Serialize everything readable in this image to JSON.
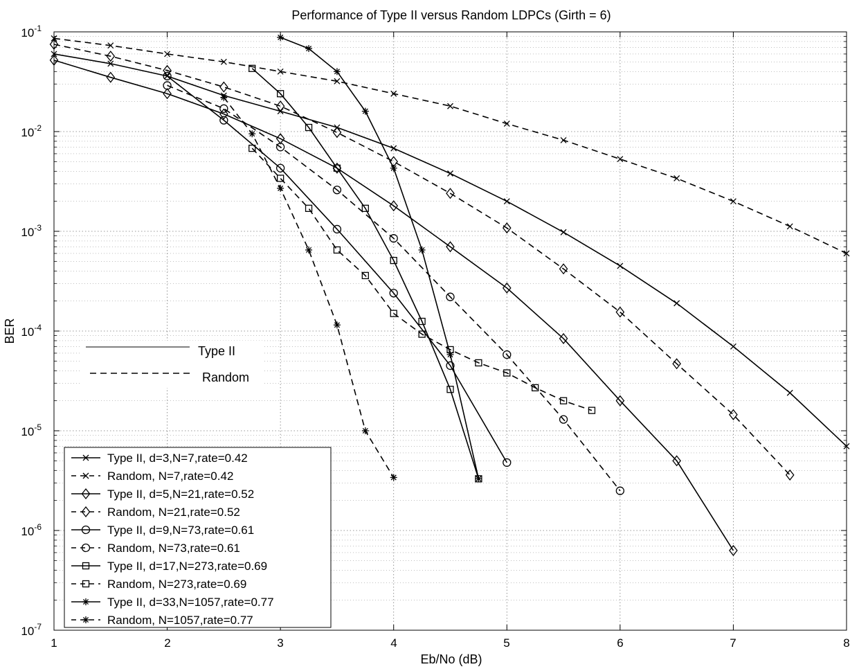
{
  "chart_data": {
    "type": "line",
    "title": "Performance of Type II versus Random LDPCs (Girth = 6)",
    "xlabel": "Eb/No (dB)",
    "ylabel": "BER",
    "xlim": [
      1,
      8
    ],
    "ylim": [
      1e-07,
      0.1
    ],
    "yscale": "log",
    "xticks": [
      1,
      2,
      3,
      4,
      5,
      6,
      7,
      8
    ],
    "yticks": [
      {
        "base": "10",
        "exp": "-1"
      },
      {
        "base": "10",
        "exp": "-2"
      },
      {
        "base": "10",
        "exp": "-3"
      },
      {
        "base": "10",
        "exp": "-4"
      },
      {
        "base": "10",
        "exp": "-5"
      },
      {
        "base": "10",
        "exp": "-6"
      },
      {
        "base": "10",
        "exp": "-7"
      }
    ],
    "grid": true,
    "legend_position": "bottom-left",
    "annotation": {
      "solid_label": "Type II",
      "dashed_label": "Random"
    },
    "series": [
      {
        "name": "Type II, d=3,N=7,rate=0.42",
        "marker": "x",
        "dash": false,
        "x": [
          1,
          1.5,
          2,
          2.5,
          3,
          3.5,
          4,
          4.5,
          5,
          5.5,
          6,
          6.5,
          7,
          7.5,
          8
        ],
        "y": [
          0.06,
          0.048,
          0.036,
          0.023,
          0.016,
          0.011,
          0.0068,
          0.0038,
          0.002,
          0.00098,
          0.00045,
          0.00019,
          7e-05,
          2.4e-05,
          7e-06
        ]
      },
      {
        "name": "Random, N=7,rate=0.42",
        "marker": "x",
        "dash": true,
        "x": [
          1,
          1.5,
          2,
          2.5,
          3,
          3.5,
          4,
          4.5,
          5,
          5.5,
          6,
          6.5,
          7,
          7.5,
          8
        ],
        "y": [
          0.086,
          0.073,
          0.06,
          0.05,
          0.04,
          0.032,
          0.024,
          0.018,
          0.012,
          0.0082,
          0.0053,
          0.0034,
          0.002,
          0.00112,
          0.0006
        ]
      },
      {
        "name": "Type II, d=5,N=21,rate=0.52",
        "marker": "diamond",
        "dash": false,
        "x": [
          1,
          1.5,
          2,
          2.5,
          3,
          3.5,
          4,
          4.5,
          5,
          5.5,
          6,
          6.5,
          7
        ],
        "y": [
          0.052,
          0.035,
          0.024,
          0.015,
          0.0085,
          0.0043,
          0.0018,
          0.0007,
          0.00027,
          8.4e-05,
          2e-05,
          5e-06,
          6.3e-07
        ]
      },
      {
        "name": "Random, N=21,rate=0.52",
        "marker": "diamond",
        "dash": true,
        "x": [
          1,
          1.5,
          2,
          2.5,
          3,
          3.5,
          4,
          4.5,
          5,
          5.5,
          6,
          6.5,
          7,
          7.5
        ],
        "y": [
          0.075,
          0.057,
          0.041,
          0.028,
          0.018,
          0.0098,
          0.005,
          0.0024,
          0.00108,
          0.00042,
          0.000155,
          4.7e-05,
          1.45e-05,
          3.6e-06
        ]
      },
      {
        "name": "Type II, d=9,N=73,rate=0.61",
        "marker": "circle",
        "dash": false,
        "x": [
          2,
          2.5,
          3,
          3.5,
          4,
          4.5,
          5
        ],
        "y": [
          0.036,
          0.013,
          0.0043,
          0.00105,
          0.00024,
          4.5e-05,
          4.8e-06
        ]
      },
      {
        "name": "Random, N=73,rate=0.61",
        "marker": "circle",
        "dash": true,
        "x": [
          2,
          2.5,
          3,
          3.5,
          4,
          4.5,
          5,
          5.5,
          6
        ],
        "y": [
          0.029,
          0.017,
          0.007,
          0.0026,
          0.00085,
          0.00022,
          5.8e-05,
          1.3e-05,
          2.5e-06
        ]
      },
      {
        "name": "Type II, d=17,N=273,rate=0.69",
        "marker": "square",
        "dash": false,
        "x": [
          2.75,
          3,
          3.25,
          3.5,
          3.75,
          4,
          4.25,
          4.5,
          4.75
        ],
        "y": [
          0.043,
          0.024,
          0.011,
          0.0043,
          0.0017,
          0.00051,
          0.000125,
          2.6e-05,
          3.3e-06
        ]
      },
      {
        "name": "Random, N=273,rate=0.69",
        "marker": "square",
        "dash": true,
        "x": [
          2.75,
          3,
          3.25,
          3.5,
          3.75,
          4,
          4.25,
          4.5,
          4.75,
          5,
          5.25,
          5.5,
          5.75
        ],
        "y": [
          0.0068,
          0.0034,
          0.0017,
          0.00065,
          0.00036,
          0.00015,
          9.3e-05,
          6.5e-05,
          4.8e-05,
          3.8e-05,
          2.7e-05,
          2e-05,
          1.6e-05
        ]
      },
      {
        "name": "Type II, d=33,N=1057,rate=0.77",
        "marker": "star",
        "dash": false,
        "x": [
          3,
          3.25,
          3.5,
          3.75,
          4,
          4.25,
          4.5,
          4.75
        ],
        "y": [
          0.088,
          0.068,
          0.04,
          0.016,
          0.0043,
          0.00065,
          5.8e-05,
          3.3e-06
        ]
      },
      {
        "name": "Random, N=1057,rate=0.77",
        "marker": "star",
        "dash": true,
        "x": [
          2.5,
          2.75,
          3,
          3.25,
          3.5,
          3.75,
          4
        ],
        "y": [
          0.022,
          0.0095,
          0.0027,
          0.00065,
          0.000115,
          1e-05,
          3.4e-06
        ]
      }
    ]
  }
}
